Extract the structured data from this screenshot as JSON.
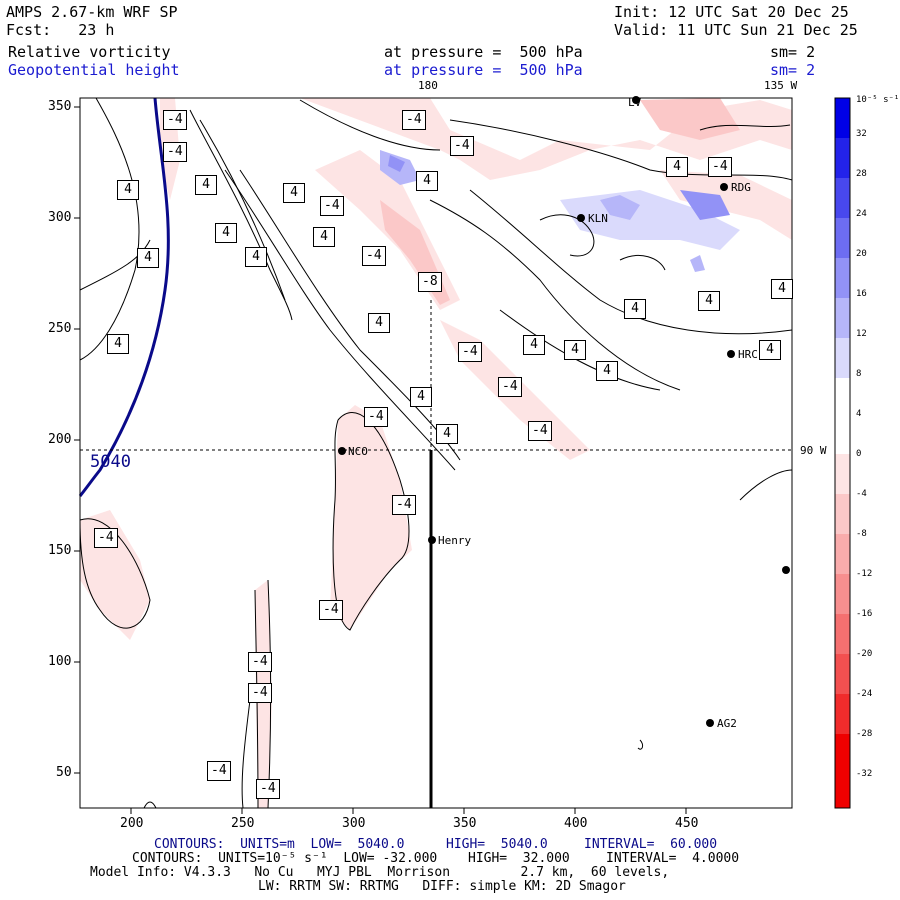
{
  "header": {
    "model": "AMPS 2.67-km WRF SP",
    "init": "Init: 12 UTC Sat 20 Dec 25",
    "fcst": "Fcst:   23 h",
    "valid": "Valid: 11 UTC Sun 21 Dec 25",
    "field1": "Relative vorticity",
    "field1_level": "at pressure =  500 hPa",
    "field1_sm": "sm= 2",
    "field2": "Geopotential height",
    "field2_level": "at pressure =  500 hPa",
    "field2_sm": "sm= 2"
  },
  "map": {
    "top_lon_labels": [
      "180",
      "135 W"
    ],
    "right_lon_label": "90 W",
    "x_ticks": [
      "200",
      "250",
      "300",
      "350",
      "400",
      "450"
    ],
    "y_ticks": [
      "350",
      "300",
      "250",
      "200",
      "150",
      "100",
      "50"
    ],
    "height_label": "5040",
    "stations": [
      {
        "name": "RDG"
      },
      {
        "name": "KLN"
      },
      {
        "name": "HRC"
      },
      {
        "name": "NCO"
      },
      {
        "name": "Henry"
      },
      {
        "name": "AG2"
      },
      {
        "name": "LV"
      }
    ],
    "contour_labels": [
      "-4",
      "4",
      "-8"
    ]
  },
  "colorbar": {
    "unit_label": "10⁻⁵ s⁻¹",
    "ticks": [
      "32",
      "28",
      "24",
      "20",
      "16",
      "12",
      "8",
      "4",
      "0",
      "-4",
      "-8",
      "-12",
      "-16",
      "-20",
      "-24",
      "-28",
      "-32"
    ],
    "colors": [
      "#0000e6",
      "#2323ea",
      "#4848ee",
      "#6d6df2",
      "#9292f6",
      "#b6b6f9",
      "#dadafc",
      "#ffffff",
      "#ffffff",
      "#fde4e4",
      "#fbc8c8",
      "#f9acac",
      "#f78f8f",
      "#f57070",
      "#f35050",
      "#f12c2c",
      "#ef0000"
    ]
  },
  "footer": {
    "line1_a": "CONTOURS:  UNITS=m  LOW=  5040.0",
    "line1_b": "HIGH=  5040.0",
    "line1_c": "INTERVAL=  60.000",
    "line2_a": "CONTOURS:  UNITS=10⁻⁵ s⁻¹  LOW= -32.000",
    "line2_b": "HIGH=  32.000",
    "line2_c": "INTERVAL=  4.0000",
    "line3": "Model Info: V4.3.3   No Cu   MYJ PBL  Morrison         2.7 km,  60 levels,",
    "line4": "LW: RRTM SW: RRTMG   DIFF: simple KM: 2D Smagor"
  }
}
